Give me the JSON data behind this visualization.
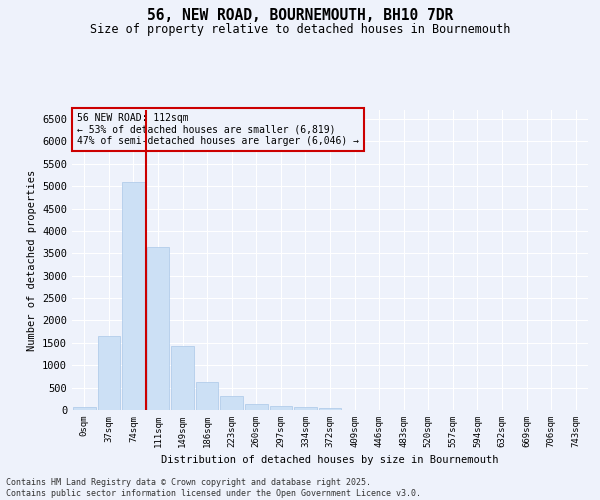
{
  "title1": "56, NEW ROAD, BOURNEMOUTH, BH10 7DR",
  "title2": "Size of property relative to detached houses in Bournemouth",
  "xlabel": "Distribution of detached houses by size in Bournemouth",
  "ylabel": "Number of detached properties",
  "bar_color": "#cce0f5",
  "bar_edge_color": "#aac8e8",
  "background_color": "#eef2fb",
  "grid_color": "#ffffff",
  "vline_color": "#cc0000",
  "annotation_text": "56 NEW ROAD: 112sqm\n← 53% of detached houses are smaller (6,819)\n47% of semi-detached houses are larger (6,046) →",
  "annotation_box_color": "#cc0000",
  "categories": [
    "0sqm",
    "37sqm",
    "74sqm",
    "111sqm",
    "149sqm",
    "186sqm",
    "223sqm",
    "260sqm",
    "297sqm",
    "334sqm",
    "372sqm",
    "409sqm",
    "446sqm",
    "483sqm",
    "520sqm",
    "557sqm",
    "594sqm",
    "632sqm",
    "669sqm",
    "706sqm",
    "743sqm"
  ],
  "values": [
    75,
    1650,
    5100,
    3630,
    1430,
    620,
    310,
    145,
    100,
    75,
    55,
    10,
    5,
    5,
    0,
    0,
    0,
    0,
    0,
    0,
    0
  ],
  "ylim": [
    0,
    6700
  ],
  "yticks": [
    0,
    500,
    1000,
    1500,
    2000,
    2500,
    3000,
    3500,
    4000,
    4500,
    5000,
    5500,
    6000,
    6500
  ],
  "vline_bar_index": 3,
  "footer": "Contains HM Land Registry data © Crown copyright and database right 2025.\nContains public sector information licensed under the Open Government Licence v3.0.",
  "figsize": [
    6.0,
    5.0
  ],
  "dpi": 100
}
